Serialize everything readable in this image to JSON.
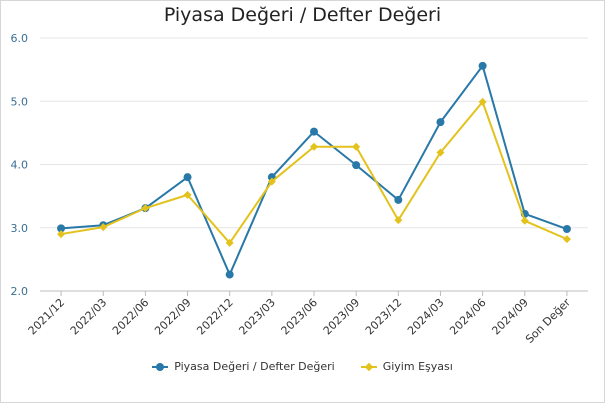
{
  "chart_data": {
    "type": "line",
    "title": "Piyasa Değeri / Defter Değeri",
    "categories": [
      "2021/12",
      "2022/03",
      "2022/06",
      "2022/09",
      "2022/12",
      "2023/03",
      "2023/06",
      "2023/09",
      "2023/12",
      "2024/03",
      "2024/06",
      "2024/09",
      "Son Değer"
    ],
    "ylim": [
      2.0,
      6.0
    ],
    "yticks": [
      "2.0",
      "3.0",
      "4.0",
      "5.0",
      "6.0"
    ],
    "grid": true,
    "legend_position": "bottom",
    "series": [
      {
        "name": "Piyasa Değeri / Defter Değeri",
        "color": "#2878a8",
        "marker": "circle",
        "values": [
          2.99,
          3.04,
          3.31,
          3.8,
          2.26,
          3.8,
          4.52,
          3.99,
          3.44,
          4.67,
          5.56,
          3.22,
          2.98
        ]
      },
      {
        "name": "Giyim Eşyası",
        "color": "#e3c21c",
        "marker": "diamond",
        "values": [
          2.9,
          3.01,
          3.31,
          3.52,
          2.76,
          3.73,
          4.28,
          4.28,
          3.12,
          4.19,
          4.99,
          3.11,
          2.82
        ]
      }
    ]
  }
}
